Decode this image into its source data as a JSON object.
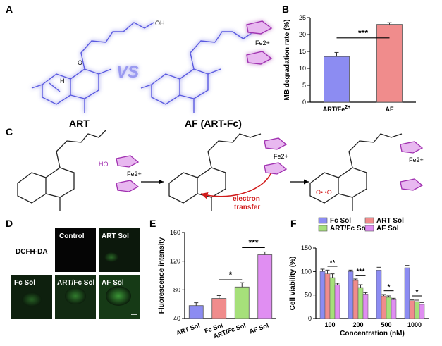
{
  "panels": {
    "a": "A",
    "b": "B",
    "c": "C",
    "d": "D",
    "e": "E",
    "f": "F"
  },
  "panel_a": {
    "left_label": "ART",
    "vs": "VS",
    "right_label": "AF (ART-Fc)",
    "fe": "Fe2+",
    "oh": "OH",
    "o": "O",
    "h": "H"
  },
  "panel_c": {
    "ho": "HO",
    "fe": "Fe2+",
    "electron_transfer": [
      "electron",
      "transfer"
    ],
    "radical": "O• •O"
  },
  "panel_d": {
    "row_label": "DCFH-DA",
    "images": [
      "Control",
      "ART Sol",
      "Fc Sol",
      "ART/Fc Sol",
      "AF Sol"
    ]
  },
  "colors": {
    "blue": "#8c8cf2",
    "red": "#f08c8c",
    "green": "#a6e07a",
    "violet": "#e08ef2",
    "arrow_red": "#d11a1a",
    "molecule_glow": "#6a6af0",
    "fc_purple": "#a030b0"
  },
  "chart_data": [
    {
      "id": "B",
      "type": "bar",
      "categories": [
        "ART/Fe2+",
        "AF"
      ],
      "values": [
        13.5,
        23.0
      ],
      "errors": [
        1.2,
        0.5
      ],
      "ylabel": "MB degradation rate (%)",
      "ylim": [
        0,
        25
      ],
      "yticks": [
        0,
        5,
        10,
        15,
        20,
        25
      ],
      "significance": [
        {
          "pair": [
            0,
            1
          ],
          "label": "***"
        }
      ]
    },
    {
      "id": "E",
      "type": "bar",
      "categories": [
        "ART Sol",
        "Fc Sol",
        "ART/Fc Sol",
        "AF Sol"
      ],
      "values": [
        58,
        68,
        84,
        129
      ],
      "errors": [
        4,
        4,
        6,
        4
      ],
      "ylabel": "Fluorescence intensity",
      "ylim": [
        40,
        160
      ],
      "yticks": [
        40,
        80,
        120,
        160
      ],
      "significance": [
        {
          "pair": [
            1,
            2
          ],
          "label": "*"
        },
        {
          "pair": [
            2,
            3
          ],
          "label": "***"
        }
      ]
    },
    {
      "id": "F",
      "type": "bar",
      "categories": [
        "100",
        "200",
        "500",
        "1000"
      ],
      "xlabel": "Concentration (nM)",
      "ylabel": "Cell viability (%)",
      "ylim": [
        0,
        150
      ],
      "yticks": [
        0,
        50,
        100,
        150
      ],
      "legend_position": "top",
      "series": [
        {
          "name": "Fc Sol",
          "values": [
            100,
            100,
            103,
            108
          ],
          "errors": [
            5,
            3,
            6,
            5
          ]
        },
        {
          "name": "ART Sol",
          "values": [
            95,
            81,
            48,
            38
          ],
          "errors": [
            8,
            3,
            3,
            2
          ]
        },
        {
          "name": "ART/Fc Sol",
          "values": [
            87,
            66,
            45,
            36
          ],
          "errors": [
            8,
            6,
            3,
            3
          ]
        },
        {
          "name": "AF Sol",
          "values": [
            72,
            52,
            40,
            30
          ],
          "errors": [
            3,
            3,
            3,
            4
          ]
        }
      ],
      "significance_labels": [
        "**",
        "***",
        "*",
        "*"
      ]
    }
  ]
}
